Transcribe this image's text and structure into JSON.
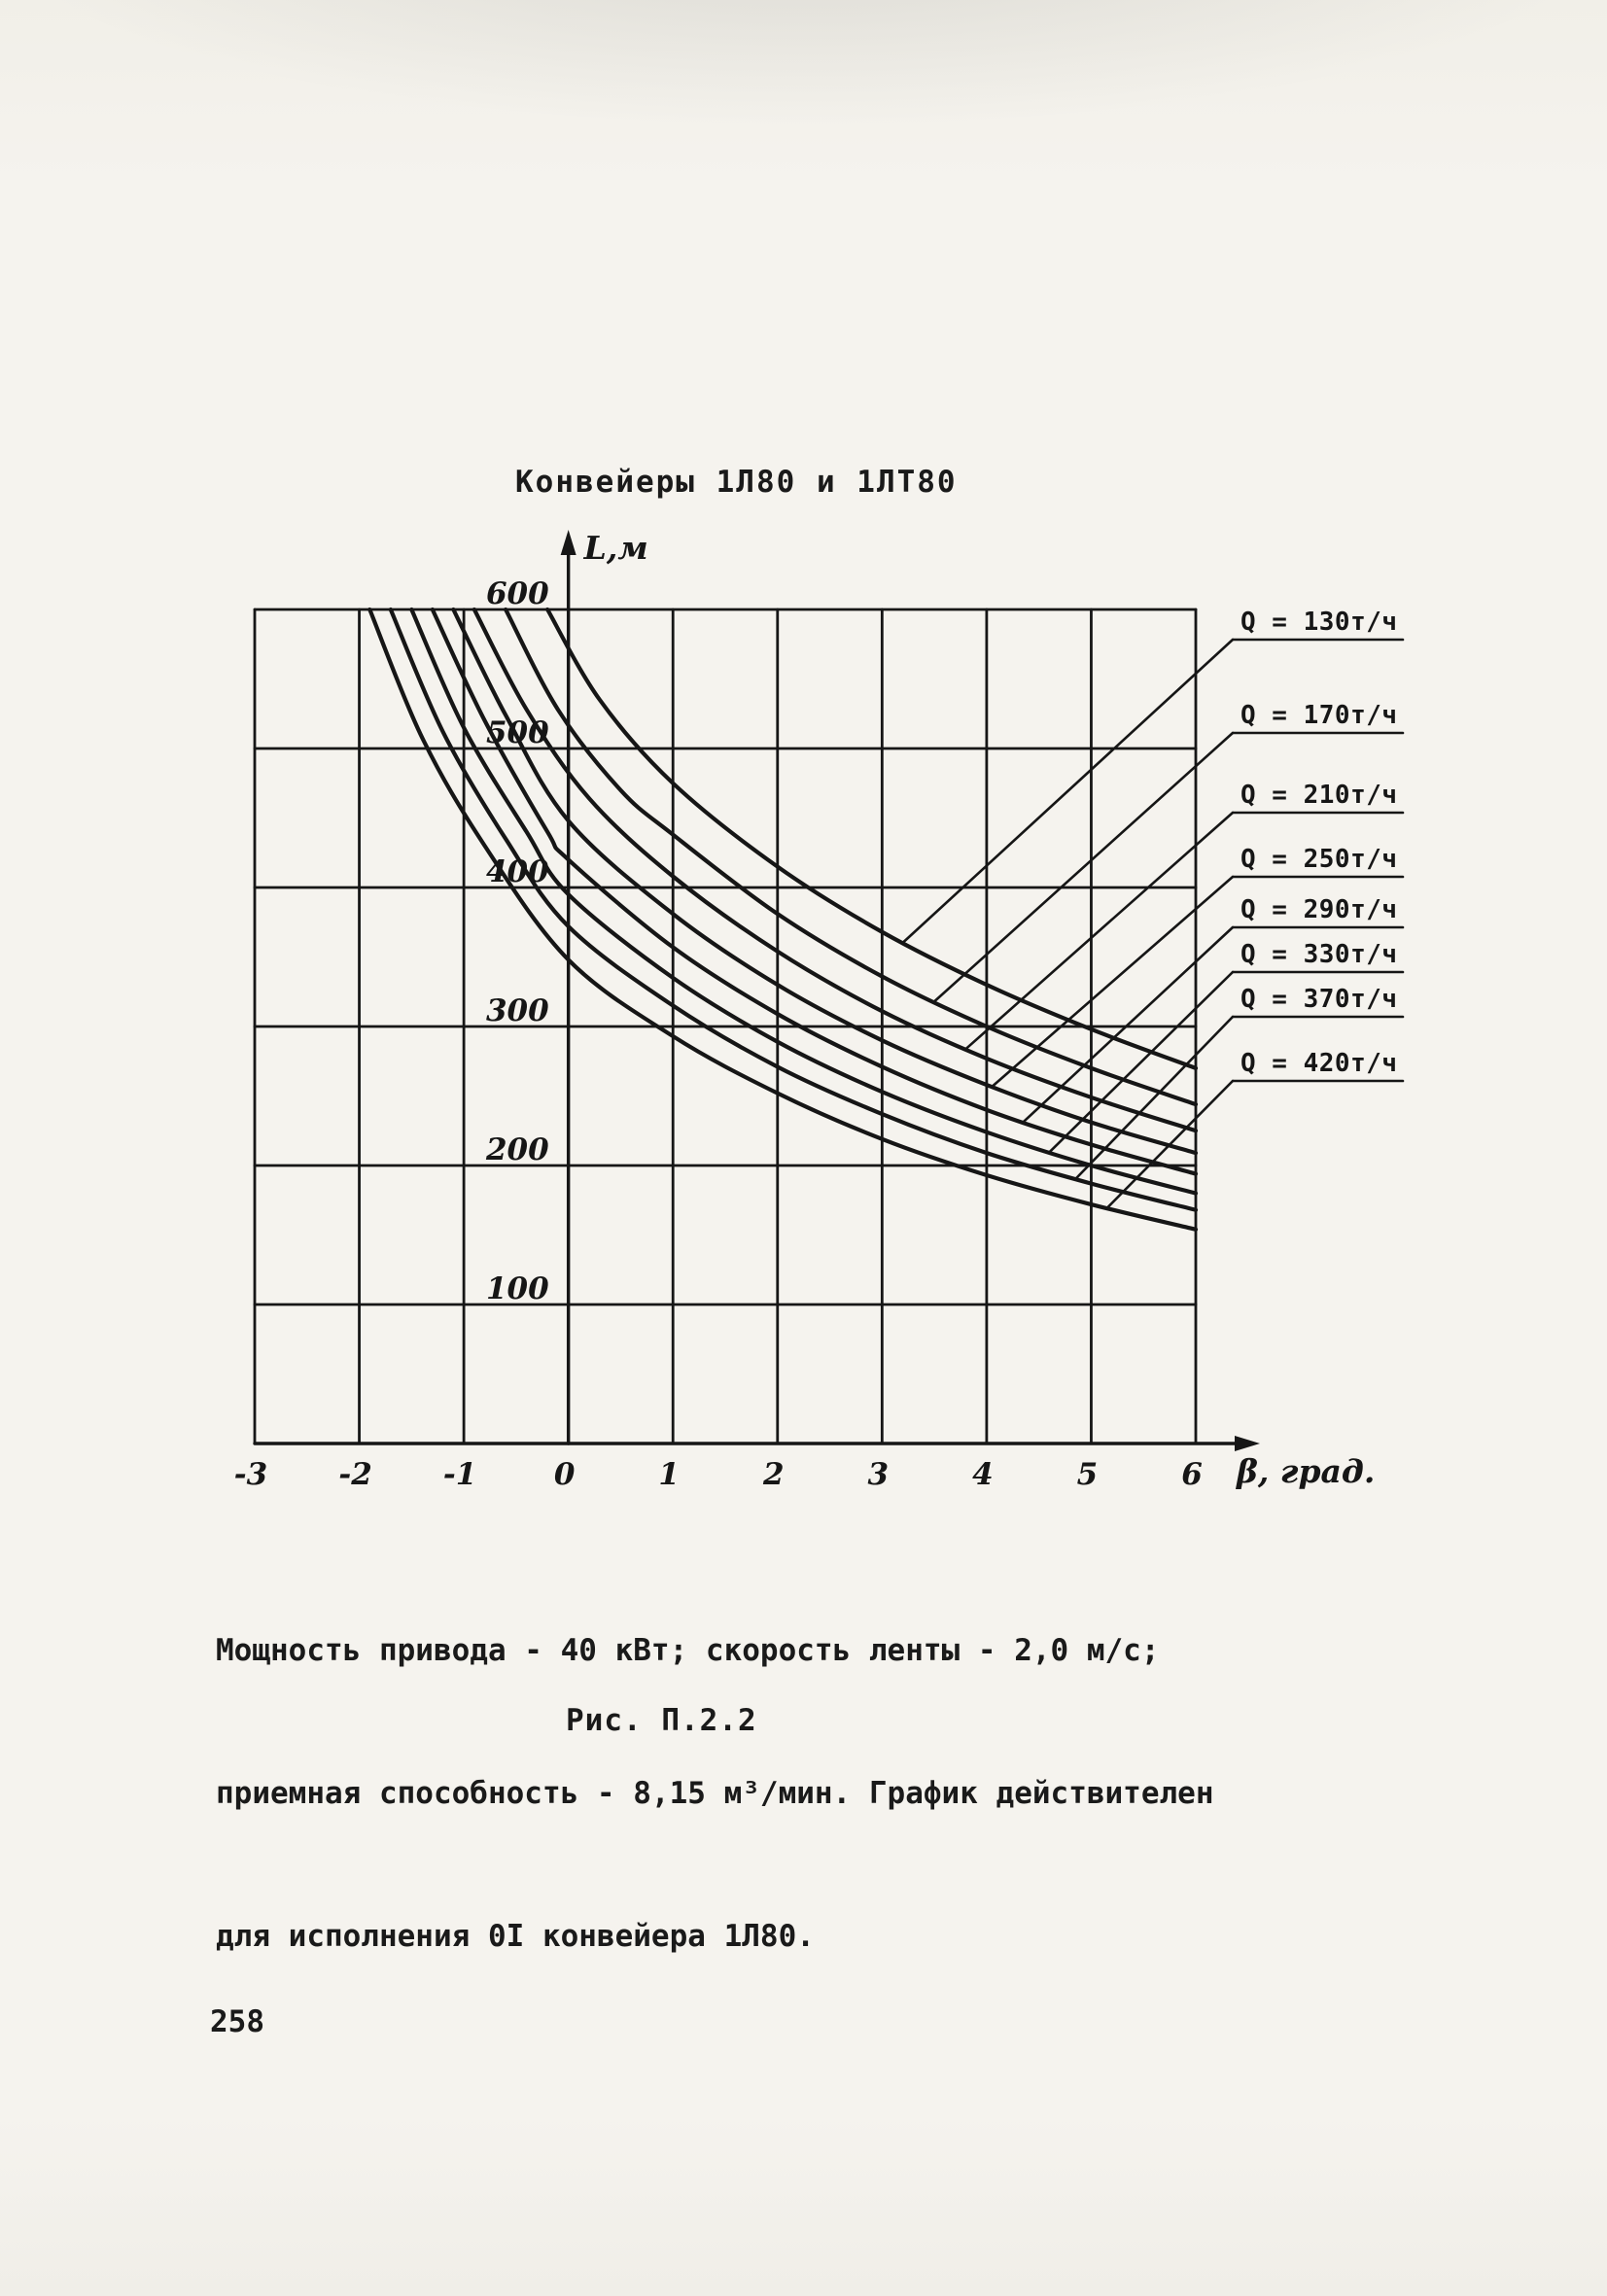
{
  "page": {
    "number": "258"
  },
  "figure": {
    "title": "Конвейеры 1Л80 и 1ЛТ80",
    "caption_lines": [
      "Мощность привода - 40 кВт; скорость ленты - 2,0 м/с;",
      "приемная способность - 8,15 м³/мин. График действителен",
      "для исполнения 0I конвейера 1Л80."
    ],
    "figure_label": "Рис. П.2.2"
  },
  "chart_data": {
    "type": "line",
    "title": "Конвейеры 1Л80 и 1ЛТ80",
    "xlabel": "β, град.",
    "ylabel": "L,м",
    "xlim": [
      -3,
      6
    ],
    "ylim": [
      0,
      600
    ],
    "x_ticks": [
      -3,
      -2,
      -1,
      0,
      1,
      2,
      3,
      4,
      5,
      6
    ],
    "y_ticks": [
      100,
      200,
      300,
      400,
      500,
      600
    ],
    "grid": true,
    "legend_position": "right",
    "line_color": "#161616",
    "series": [
      {
        "name": "Q = 130т/ч",
        "leader_beta": 3.2,
        "points": [
          [
            -0.2,
            600
          ],
          [
            0.3,
            535
          ],
          [
            1,
            475
          ],
          [
            2,
            415
          ],
          [
            3,
            368
          ],
          [
            4,
            330
          ],
          [
            5,
            298
          ],
          [
            6,
            270
          ]
        ]
      },
      {
        "name": "Q = 170т/ч",
        "leader_beta": 3.5,
        "points": [
          [
            -0.6,
            600
          ],
          [
            -0.1,
            528
          ],
          [
            0.5,
            470
          ],
          [
            1,
            438
          ],
          [
            2,
            381
          ],
          [
            3,
            336
          ],
          [
            4,
            300
          ],
          [
            5,
            270
          ],
          [
            6,
            244
          ]
        ]
      },
      {
        "name": "Q = 210т/ч",
        "leader_beta": 3.8,
        "points": [
          [
            -0.9,
            600
          ],
          [
            -0.4,
            528
          ],
          [
            0.2,
            464
          ],
          [
            1,
            408
          ],
          [
            2,
            354
          ],
          [
            3,
            311
          ],
          [
            4,
            277
          ],
          [
            5,
            249
          ],
          [
            6,
            225
          ]
        ]
      },
      {
        "name": "Q = 250т/ч",
        "leader_beta": 4.05,
        "points": [
          [
            -1.1,
            600
          ],
          [
            -0.6,
            524
          ],
          [
            0,
            448
          ],
          [
            1,
            381
          ],
          [
            2,
            330
          ],
          [
            3,
            290
          ],
          [
            4,
            258
          ],
          [
            5,
            231
          ],
          [
            6,
            209
          ]
        ]
      },
      {
        "name": "Q = 290т/ч",
        "leader_beta": 4.35,
        "points": [
          [
            -1.3,
            600
          ],
          [
            -0.8,
            520
          ],
          [
            -0.2,
            440
          ],
          [
            0,
            420
          ],
          [
            1,
            357
          ],
          [
            2,
            309
          ],
          [
            3,
            271
          ],
          [
            4,
            240
          ],
          [
            5,
            215
          ],
          [
            6,
            194
          ]
        ]
      },
      {
        "name": "Q = 330т/ч",
        "leader_beta": 4.6,
        "points": [
          [
            -1.5,
            600
          ],
          [
            -1.0,
            515
          ],
          [
            -0.4,
            440
          ],
          [
            0,
            395
          ],
          [
            1,
            335
          ],
          [
            2,
            289
          ],
          [
            3,
            253
          ],
          [
            4,
            224
          ],
          [
            5,
            200
          ],
          [
            6,
            180
          ]
        ]
      },
      {
        "name": "Q = 370т/ч",
        "leader_beta": 4.85,
        "points": [
          [
            -1.7,
            600
          ],
          [
            -1.2,
            512
          ],
          [
            -0.6,
            435
          ],
          [
            0,
            372
          ],
          [
            1,
            315
          ],
          [
            2,
            271
          ],
          [
            3,
            237
          ],
          [
            4,
            209
          ],
          [
            5,
            187
          ],
          [
            6,
            168
          ]
        ]
      },
      {
        "name": "Q = 420т/ч",
        "leader_beta": 5.15,
        "points": [
          [
            -1.9,
            600
          ],
          [
            -1.4,
            508
          ],
          [
            -0.8,
            430
          ],
          [
            0,
            348
          ],
          [
            1,
            293
          ],
          [
            2,
            252
          ],
          [
            3,
            219
          ],
          [
            4,
            193
          ],
          [
            5,
            172
          ],
          [
            6,
            154
          ]
        ]
      }
    ]
  }
}
